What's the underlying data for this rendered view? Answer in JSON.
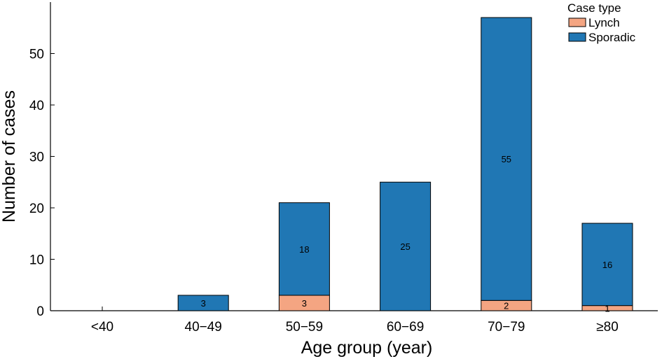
{
  "chart_data": {
    "type": "bar",
    "stacked": true,
    "title": "",
    "xlabel": "Age group (year)",
    "ylabel": "Number of cases",
    "ylim": [
      0,
      60
    ],
    "yticks": [
      0,
      10,
      20,
      30,
      40,
      50
    ],
    "categories": [
      "<40",
      "40−49",
      "50−59",
      "60−69",
      "70−79",
      "≥80"
    ],
    "series": [
      {
        "name": "Lynch",
        "color": "#f4a582",
        "values": [
          0,
          0,
          3,
          0,
          2,
          1
        ],
        "labels": [
          "",
          "",
          "3",
          "",
          "2",
          "1"
        ]
      },
      {
        "name": "Sporadic",
        "color": "#2077b4",
        "values": [
          0,
          3,
          18,
          25,
          55,
          16
        ],
        "labels": [
          "",
          "3",
          "18",
          "25",
          "55",
          "16"
        ]
      }
    ],
    "legend": {
      "title": "Case type",
      "placement": "top-right"
    },
    "grid": false
  }
}
